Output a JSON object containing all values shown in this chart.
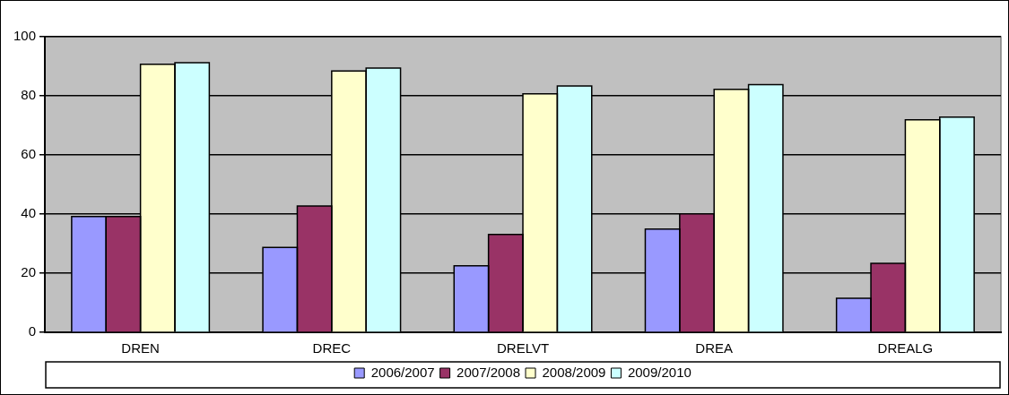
{
  "chart_data": {
    "type": "bar",
    "categories": [
      "DREN",
      "DREC",
      "DRELVT",
      "DREA",
      "DREALG"
    ],
    "series": [
      {
        "name": "2006/2007",
        "color": "#9999ff",
        "values": [
          39.2,
          28.7,
          22.5,
          34.9,
          11.5
        ]
      },
      {
        "name": "2007/2008",
        "color": "#993366",
        "values": [
          39.2,
          42.7,
          33.1,
          40.1,
          23.3
        ]
      },
      {
        "name": "2008/2009",
        "color": "#ffffcc",
        "values": [
          90.7,
          88.4,
          80.7,
          82.2,
          71.9
        ]
      },
      {
        "name": "2009/2010",
        "color": "#ccffff",
        "values": [
          91.2,
          89.4,
          83.3,
          83.8,
          72.8
        ]
      }
    ],
    "ylim": [
      0,
      100
    ],
    "yticks": [
      0,
      20,
      40,
      60,
      80,
      100
    ],
    "grid": "y",
    "legend": "bottom"
  }
}
